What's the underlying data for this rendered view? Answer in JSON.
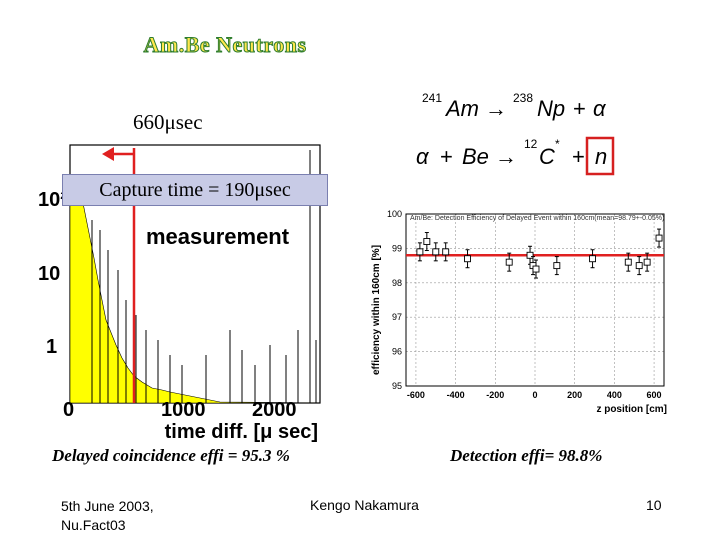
{
  "slide": {
    "title": "Am.Be Neutrons",
    "label_660": "660μsec",
    "capture_box": "Capture time = 190μsec",
    "caption_left": "Delayed coincidence effi = 95.3 %",
    "caption_right": "Detection effi= 98.8%"
  },
  "equations": {
    "line1": {
      "sup1": "241",
      "am": "Am",
      "arrow": "→",
      "sup2": "238",
      "np": "Np",
      "plus": "+",
      "alpha": "α"
    },
    "line2": {
      "alpha": "α",
      "plus": "+",
      "be": "Be",
      "arrow": "→",
      "sup": "12",
      "c": "C",
      "star": "*",
      "plus2": "+",
      "n": "n"
    }
  },
  "left_plot": {
    "y_ticks": [
      "10²",
      "10",
      "1"
    ],
    "x_ticks": [
      "0",
      "1000",
      "2000"
    ],
    "xlabel": "time diff. [μ sec]",
    "annotation": "measurement",
    "fill_color": "#ffff00",
    "marker_color": "#e02020"
  },
  "chart_data": {
    "type": "scatter",
    "title": "Am/Be: Detection Efficiency of Delayed Event within 160cm(mean=98.79+-0.05%)",
    "xlabel": "z position [cm]",
    "ylabel": "efficiency within 160cm [%]",
    "xlim": [
      -650,
      650
    ],
    "ylim": [
      95,
      100
    ],
    "x_ticks": [
      "-600",
      "-400",
      "-200",
      "0",
      "200",
      "400",
      "600"
    ],
    "y_ticks": [
      "95",
      "96",
      "97",
      "98",
      "99",
      "100"
    ],
    "grid": true,
    "reference_line": 98.8,
    "reference_color": "#e02020",
    "points": [
      {
        "x": -580,
        "y": 98.9
      },
      {
        "x": -545,
        "y": 99.2
      },
      {
        "x": -500,
        "y": 98.9
      },
      {
        "x": -450,
        "y": 98.9
      },
      {
        "x": -340,
        "y": 98.7
      },
      {
        "x": -130,
        "y": 98.6
      },
      {
        "x": -25,
        "y": 98.8
      },
      {
        "x": -10,
        "y": 98.5
      },
      {
        "x": 5,
        "y": 98.4
      },
      {
        "x": 110,
        "y": 98.5
      },
      {
        "x": 290,
        "y": 98.7
      },
      {
        "x": 470,
        "y": 98.6
      },
      {
        "x": 525,
        "y": 98.5
      },
      {
        "x": 565,
        "y": 98.6
      },
      {
        "x": 625,
        "y": 99.3
      }
    ]
  },
  "footer": {
    "date_line1": "5th June 2003,",
    "date_line2": "Nu.Fact03",
    "author": "Kengo Nakamura",
    "page": "10"
  }
}
